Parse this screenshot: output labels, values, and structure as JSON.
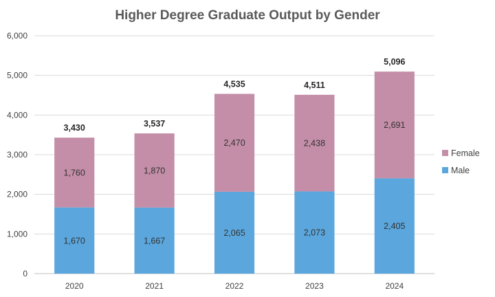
{
  "chart_data": {
    "type": "bar",
    "stacked": true,
    "title": "Higher Degree Graduate Output by Gender",
    "categories": [
      "2020",
      "2021",
      "2022",
      "2023",
      "2024"
    ],
    "series": [
      {
        "name": "Male",
        "values": [
          1670,
          1667,
          2065,
          2073,
          2405
        ],
        "color": "#5BA7DD",
        "labels": [
          "1,670",
          "1,667",
          "2,065",
          "2,073",
          "2,405"
        ]
      },
      {
        "name": "Female",
        "values": [
          1760,
          1870,
          2470,
          2438,
          2691
        ],
        "color": "#C48EA8",
        "labels": [
          "1,760",
          "1,870",
          "2,470",
          "2,438",
          "2,691"
        ]
      }
    ],
    "totals": [
      3430,
      3537,
      4535,
      4511,
      5096
    ],
    "total_labels": [
      "3,430",
      "3,537",
      "4,535",
      "4,511",
      "5,096"
    ],
    "ylim": [
      0,
      6000
    ],
    "yticks": [
      0,
      1000,
      2000,
      3000,
      4000,
      5000,
      6000
    ],
    "ytick_labels": [
      "0",
      "1,000",
      "2,000",
      "3,000",
      "4,000",
      "5,000",
      "6,000"
    ],
    "grid": true,
    "legend_position": "right",
    "legend": [
      {
        "name": "Female",
        "color": "#C48EA8"
      },
      {
        "name": "Male",
        "color": "#5BA7DD"
      }
    ]
  }
}
